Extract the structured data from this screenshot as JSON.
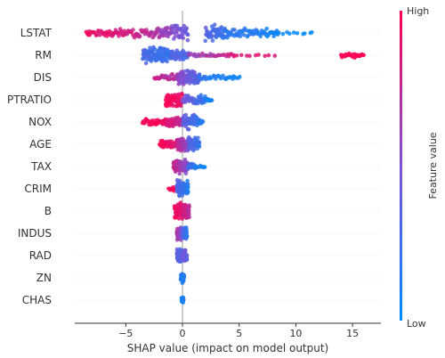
{
  "chart_data": {
    "type": "scatter",
    "subtype": "shap-beeswarm",
    "xlabel": "SHAP value (impact on model output)",
    "xlim": [
      -9.5,
      17.5
    ],
    "x_ticks": [
      -5,
      0,
      5,
      10,
      15
    ],
    "x_tick_labels": [
      "−5",
      "0",
      "5",
      "10",
      "15"
    ],
    "zero_line": true,
    "colors": {
      "low": "#008bfb",
      "high": "#ff0052"
    },
    "colorbar": {
      "high_label": "High",
      "low_label": "Low",
      "title": "Feature value"
    },
    "features": [
      {
        "name": "LSTAT",
        "segments": [
          {
            "x0": -8.5,
            "x1": -7.0,
            "n": 18,
            "w": 4,
            "c0": 0.95,
            "c1": 0.9
          },
          {
            "x0": -7.0,
            "x1": -2.0,
            "n": 70,
            "w": 6,
            "c0": 0.9,
            "c1": 0.7
          },
          {
            "x0": -2.0,
            "x1": 0.5,
            "n": 60,
            "w": 9,
            "c0": 0.65,
            "c1": 0.4
          },
          {
            "x0": 2.0,
            "x1": 4.0,
            "n": 55,
            "w": 10,
            "c0": 0.35,
            "c1": 0.2
          },
          {
            "x0": 4.0,
            "x1": 8.5,
            "n": 60,
            "w": 6,
            "c0": 0.2,
            "c1": 0.05
          },
          {
            "x0": 8.5,
            "x1": 11.5,
            "n": 10,
            "w": 1.5,
            "c0": 0.05,
            "c1": 0.0
          }
        ]
      },
      {
        "name": "RM",
        "segments": [
          {
            "x0": -3.5,
            "x1": -1.0,
            "n": 110,
            "w": 10,
            "c0": 0.3,
            "c1": 0.2
          },
          {
            "x0": -1.0,
            "x1": 0.5,
            "n": 40,
            "w": 6,
            "c0": 0.35,
            "c1": 0.3
          },
          {
            "x0": 0.5,
            "x1": 4.5,
            "n": 30,
            "w": 2.5,
            "c0": 0.6,
            "c1": 0.8
          },
          {
            "x0": 4.5,
            "x1": 8.0,
            "n": 10,
            "w": 1.5,
            "c0": 0.85,
            "c1": 0.9
          },
          {
            "x0": 14.0,
            "x1": 16.0,
            "n": 26,
            "w": 3,
            "c0": 1.0,
            "c1": 1.0
          }
        ]
      },
      {
        "name": "DIS",
        "segments": [
          {
            "x0": -2.5,
            "x1": -0.5,
            "n": 30,
            "w": 4,
            "c0": 0.8,
            "c1": 0.7
          },
          {
            "x0": -0.5,
            "x1": 1.5,
            "n": 90,
            "w": 9,
            "c0": 0.6,
            "c1": 0.3
          },
          {
            "x0": 1.5,
            "x1": 5.0,
            "n": 30,
            "w": 3,
            "c0": 0.2,
            "c1": 0.05
          }
        ]
      },
      {
        "name": "PTRATIO",
        "segments": [
          {
            "x0": -1.5,
            "x1": 0.0,
            "n": 60,
            "w": 9,
            "c0": 1.0,
            "c1": 0.9
          },
          {
            "x0": 0.0,
            "x1": 2.0,
            "n": 50,
            "w": 6,
            "c0": 0.5,
            "c1": 0.2
          },
          {
            "x0": 2.0,
            "x1": 2.6,
            "n": 12,
            "w": 2,
            "c0": 0.1,
            "c1": 0.05
          }
        ]
      },
      {
        "name": "NOX",
        "segments": [
          {
            "x0": -3.5,
            "x1": -1.5,
            "n": 40,
            "w": 4,
            "c0": 1.0,
            "c1": 0.95
          },
          {
            "x0": -1.5,
            "x1": 0.0,
            "n": 50,
            "w": 6,
            "c0": 0.9,
            "c1": 0.75
          },
          {
            "x0": 0.0,
            "x1": 1.5,
            "n": 60,
            "w": 9,
            "c0": 0.4,
            "c1": 0.2
          },
          {
            "x0": 1.5,
            "x1": 1.8,
            "n": 8,
            "w": 2,
            "c0": 0.15,
            "c1": 0.1
          }
        ]
      },
      {
        "name": "AGE",
        "segments": [
          {
            "x0": -2.0,
            "x1": -0.5,
            "n": 40,
            "w": 6,
            "c0": 1.0,
            "c1": 0.85
          },
          {
            "x0": -0.5,
            "x1": 0.5,
            "n": 60,
            "w": 9,
            "c0": 0.8,
            "c1": 0.55
          },
          {
            "x0": 0.5,
            "x1": 1.5,
            "n": 55,
            "w": 9,
            "c0": 0.4,
            "c1": 0.2
          }
        ]
      },
      {
        "name": "TAX",
        "segments": [
          {
            "x0": -0.8,
            "x1": 0.5,
            "n": 80,
            "w": 9,
            "c0": 0.8,
            "c1": 0.5
          },
          {
            "x0": 0.5,
            "x1": 1.2,
            "n": 20,
            "w": 3,
            "c0": 0.3,
            "c1": 0.15
          },
          {
            "x0": 1.2,
            "x1": 2.0,
            "n": 10,
            "w": 1.5,
            "c0": 0.1,
            "c1": 0.05
          }
        ]
      },
      {
        "name": "CRIM",
        "segments": [
          {
            "x0": -1.2,
            "x1": -0.6,
            "n": 10,
            "w": 3,
            "c0": 1.0,
            "c1": 1.0
          },
          {
            "x0": -0.5,
            "x1": 0.5,
            "n": 110,
            "w": 10,
            "c0": 0.35,
            "c1": 0.15
          }
        ]
      },
      {
        "name": "B",
        "segments": [
          {
            "x0": -0.7,
            "x1": 0.0,
            "n": 60,
            "w": 10,
            "c0": 0.95,
            "c1": 0.9
          },
          {
            "x0": 0.0,
            "x1": 0.6,
            "n": 60,
            "w": 10,
            "c0": 0.85,
            "c1": 0.75
          }
        ]
      },
      {
        "name": "INDUS",
        "segments": [
          {
            "x0": -0.5,
            "x1": 0.0,
            "n": 50,
            "w": 8,
            "c0": 0.7,
            "c1": 0.5
          },
          {
            "x0": 0.0,
            "x1": 0.4,
            "n": 40,
            "w": 7,
            "c0": 0.4,
            "c1": 0.2
          }
        ]
      },
      {
        "name": "RAD",
        "segments": [
          {
            "x0": -0.5,
            "x1": 0.0,
            "n": 50,
            "w": 8,
            "c0": 0.4,
            "c1": 0.3
          },
          {
            "x0": 0.0,
            "x1": 0.4,
            "n": 40,
            "w": 7,
            "c0": 0.5,
            "c1": 0.4
          }
        ]
      },
      {
        "name": "ZN",
        "segments": [
          {
            "x0": -0.15,
            "x1": 0.15,
            "n": 40,
            "w": 6,
            "c0": 0.1,
            "c1": 0.15
          }
        ]
      },
      {
        "name": "CHAS",
        "segments": [
          {
            "x0": -0.08,
            "x1": 0.08,
            "n": 30,
            "w": 4,
            "c0": 0.05,
            "c1": 0.1
          }
        ]
      }
    ]
  }
}
